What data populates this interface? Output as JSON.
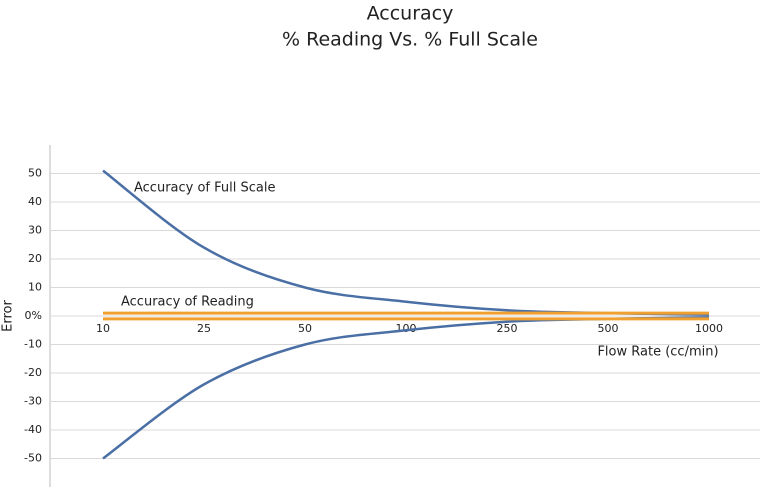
{
  "chart_data": {
    "type": "line",
    "title": "Accuracy",
    "subtitle": "% Reading Vs. % Full Scale",
    "x_label": "Flow Rate (cc/min)",
    "y_label": "Error",
    "categories": [
      "10",
      "25",
      "50",
      "100",
      "250",
      "500",
      "1000"
    ],
    "series": [
      {
        "name": "Accuracy of Full Scale",
        "color": "#4a6fa5",
        "values": [
          51,
          24,
          10,
          5,
          2,
          1,
          0.5
        ]
      },
      {
        "color": "#4a6fa5",
        "values": [
          -50,
          -24,
          -10,
          -5,
          -2,
          -1,
          -0.5
        ]
      },
      {
        "name": "Accuracy of Reading",
        "color": "#f0a030",
        "values": [
          1,
          1,
          1,
          1,
          1,
          1,
          1
        ]
      },
      {
        "color": "#f0a030",
        "values": [
          -1,
          -1,
          -1,
          -1,
          -1,
          -1,
          -1
        ]
      }
    ],
    "ylim": [
      -60,
      60
    ],
    "yticks": [
      50,
      40,
      30,
      20,
      10,
      {
        "value": 0,
        "label": "0%"
      },
      -10,
      -20,
      -30,
      -40,
      -50
    ],
    "grid": true
  }
}
